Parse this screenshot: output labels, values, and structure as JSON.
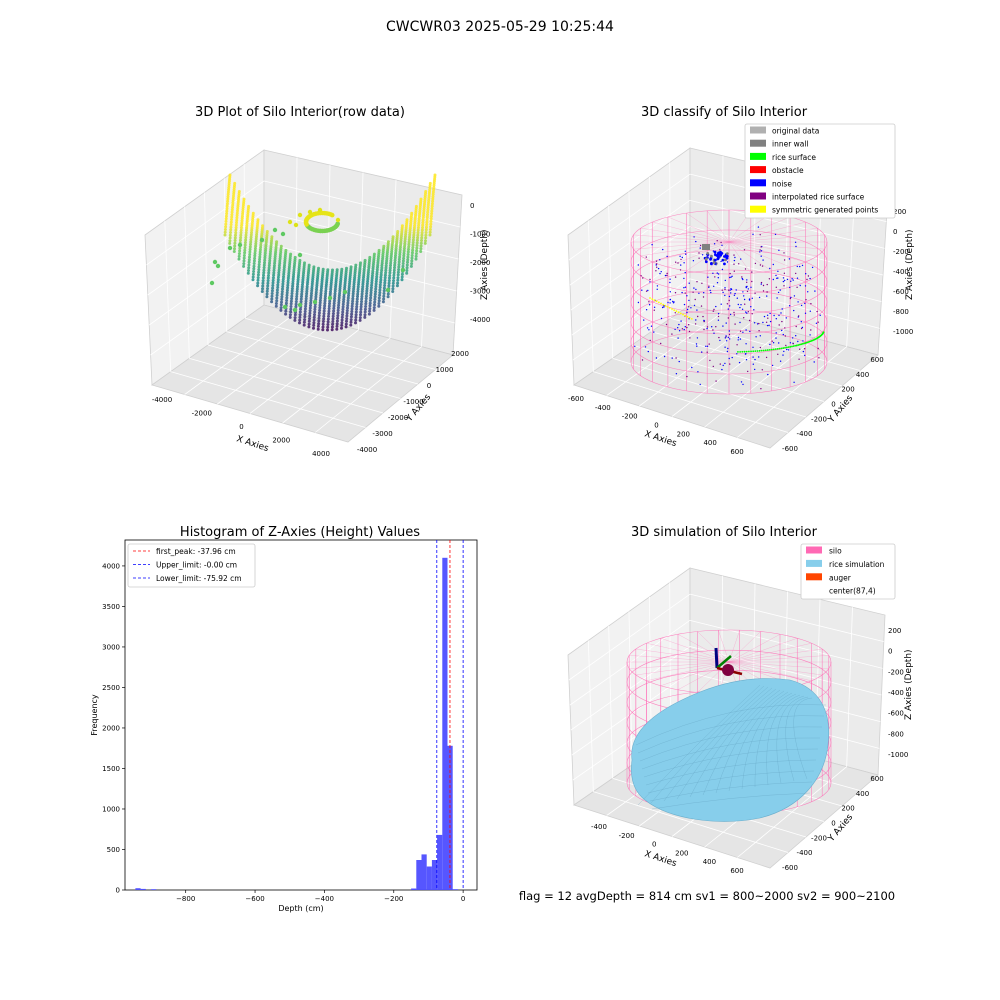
{
  "figure_title": "CWCWR03 2025-05-29 10:25:44",
  "footer_text": "flag = 12   avgDepth = 814 cm  sv1 = 800~2000  sv2 = 900~2100",
  "colors": {
    "silo": "#ff69b4",
    "rice_simulation": "#87ceeb",
    "auger": "#ff4500",
    "original_data": "#b0b0b0",
    "inner_wall": "#808080",
    "rice_surface": "#00ff00",
    "obstacle": "#ff0000",
    "noise": "#0000ff",
    "interpolated": "#800080",
    "symmetric": "#ffff00",
    "hist_bar": "#4d4dff",
    "line_red": "#ff0000",
    "line_blue": "#0000ff"
  },
  "chart_data": [
    {
      "type": "scatter3d",
      "title": "3D Plot of Silo Interior(row data)",
      "xlabel": "X Axies",
      "ylabel": "Y Axies",
      "zlabel": "Z Axies (Depth)",
      "x_ticks": [
        "-4000",
        "-2000",
        "0",
        "2000",
        "4000"
      ],
      "y_ticks": [
        "2000",
        "1000",
        "0",
        "-1000",
        "-2000",
        "-3000",
        "-4000"
      ],
      "z_ticks": [
        "0",
        "-1000",
        "-2000",
        "-3000",
        "-4000"
      ],
      "colormap": "viridis"
    },
    {
      "type": "scatter3d",
      "title": "3D classify of Silo Interior",
      "xlabel": "X Axies",
      "ylabel": "Y Axies",
      "zlabel": "Z Axies (Depth)",
      "x_ticks": [
        "-600",
        "-400",
        "-200",
        "0",
        "200",
        "400",
        "600"
      ],
      "y_ticks": [
        "600",
        "400",
        "200",
        "0",
        "-200",
        "-400",
        "-600"
      ],
      "z_ticks": [
        "200",
        "0",
        "-200",
        "-400",
        "-600",
        "-800",
        "-1000"
      ],
      "legend": [
        "original data",
        "inner wall",
        "rice surface",
        "obstacle",
        "noise",
        "interpolated rice surface",
        "symmetric generated points"
      ],
      "legend_loc": "upper right"
    },
    {
      "type": "bar",
      "title": "Histogram of Z-Axies (Height) Values",
      "xlabel": "Depth (cm)",
      "ylabel": "Frequency",
      "xlim": [
        -975,
        40
      ],
      "ylim": [
        0,
        4320
      ],
      "x_ticks": [
        "−800",
        "−600",
        "−400",
        "−200",
        "0"
      ],
      "y_ticks": [
        "0",
        "500",
        "1000",
        "1500",
        "2000",
        "2500",
        "3000",
        "3500",
        "4000"
      ],
      "bin_width": 15,
      "bins": [
        {
          "x": -945,
          "y": 22
        },
        {
          "x": -930,
          "y": 14
        },
        {
          "x": -900,
          "y": 10
        },
        {
          "x": -150,
          "y": 18
        },
        {
          "x": -135,
          "y": 370
        },
        {
          "x": -120,
          "y": 440
        },
        {
          "x": -105,
          "y": 290
        },
        {
          "x": -90,
          "y": 370
        },
        {
          "x": -75,
          "y": 680
        },
        {
          "x": -60,
          "y": 4100
        },
        {
          "x": -45,
          "y": 1780
        },
        {
          "x": -30,
          "y": 10
        }
      ],
      "vlines": [
        {
          "label": "first_peak: -37.96 cm",
          "x": -37.96,
          "color": "red"
        },
        {
          "label": "Upper_limit: -0.00 cm",
          "x": 0,
          "color": "blue"
        },
        {
          "label": "Lower_limit: -75.92 cm",
          "x": -75.92,
          "color": "blue"
        }
      ],
      "legend_loc": "upper left"
    },
    {
      "type": "surface3d",
      "title": "3D simulation of Silo Interior",
      "xlabel": "X Axies",
      "ylabel": "Y Axies",
      "zlabel": "Z Axies (Depth)",
      "x_ticks": [
        "-400",
        "-200",
        "0",
        "200",
        "400",
        "600"
      ],
      "y_ticks": [
        "600",
        "400",
        "200",
        "0",
        "-200",
        "-400",
        "-600"
      ],
      "z_ticks": [
        "200",
        "0",
        "-200",
        "-400",
        "-600",
        "-800",
        "-1000"
      ],
      "legend": [
        "silo",
        "rice simulation",
        "auger",
        "center(87,4)"
      ],
      "legend_loc": "upper right"
    }
  ]
}
